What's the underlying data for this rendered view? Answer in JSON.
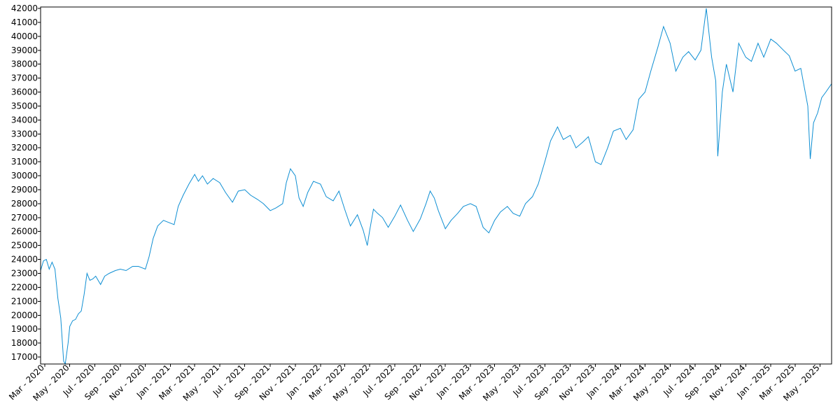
{
  "chart_data": {
    "type": "line",
    "title": "",
    "xlabel": "",
    "ylabel": "",
    "grid": false,
    "line_color": "#0f8fd3",
    "xlim": [
      "2020-02-20",
      "2025-05-29"
    ],
    "ylim": [
      16500,
      42100
    ],
    "y_ticks": [
      17000,
      18000,
      19000,
      20000,
      21000,
      22000,
      23000,
      24000,
      25000,
      26000,
      27000,
      28000,
      29000,
      30000,
      31000,
      32000,
      33000,
      34000,
      35000,
      36000,
      37000,
      38000,
      39000,
      40000,
      41000,
      42000
    ],
    "x_ticks": [
      {
        "date": "2020-03-01",
        "label": "Mar - 2020"
      },
      {
        "date": "2020-05-01",
        "label": "May - 2020"
      },
      {
        "date": "2020-07-01",
        "label": "Jul - 2020"
      },
      {
        "date": "2020-09-01",
        "label": "Sep - 2020"
      },
      {
        "date": "2020-11-01",
        "label": "Nov - 2020"
      },
      {
        "date": "2021-01-01",
        "label": "Jan - 2021"
      },
      {
        "date": "2021-03-01",
        "label": "Mar - 2021"
      },
      {
        "date": "2021-05-01",
        "label": "May - 2021"
      },
      {
        "date": "2021-07-01",
        "label": "Jul - 2021"
      },
      {
        "date": "2021-09-01",
        "label": "Sep - 2021"
      },
      {
        "date": "2021-11-01",
        "label": "Nov - 2021"
      },
      {
        "date": "2022-01-01",
        "label": "Jan - 2022"
      },
      {
        "date": "2022-03-01",
        "label": "Mar - 2022"
      },
      {
        "date": "2022-05-01",
        "label": "May - 2022"
      },
      {
        "date": "2022-07-01",
        "label": "Jul - 2022"
      },
      {
        "date": "2022-09-01",
        "label": "Sep - 2022"
      },
      {
        "date": "2022-11-01",
        "label": "Nov - 2022"
      },
      {
        "date": "2023-01-01",
        "label": "Jan - 2023"
      },
      {
        "date": "2023-03-01",
        "label": "Mar - 2023"
      },
      {
        "date": "2023-05-01",
        "label": "May - 2023"
      },
      {
        "date": "2023-07-01",
        "label": "Jul - 2023"
      },
      {
        "date": "2023-09-01",
        "label": "Sep - 2023"
      },
      {
        "date": "2023-11-01",
        "label": "Nov - 2023"
      },
      {
        "date": "2024-01-01",
        "label": "Jan - 2024"
      },
      {
        "date": "2024-03-01",
        "label": "Mar - 2024"
      },
      {
        "date": "2024-05-01",
        "label": "May - 2024"
      },
      {
        "date": "2024-07-01",
        "label": "Jul - 2024"
      },
      {
        "date": "2024-09-01",
        "label": "Sep - 2024"
      },
      {
        "date": "2024-11-01",
        "label": "Nov - 2024"
      },
      {
        "date": "2025-01-01",
        "label": "Jan - 2025"
      },
      {
        "date": "2025-03-01",
        "label": "Mar - 2025"
      },
      {
        "date": "2025-05-01",
        "label": "May - 2025"
      }
    ],
    "series": [
      {
        "points": [
          [
            "2020-02-20",
            23200
          ],
          [
            "2020-02-27",
            23900
          ],
          [
            "2020-03-05",
            24000
          ],
          [
            "2020-03-12",
            23300
          ],
          [
            "2020-03-19",
            23800
          ],
          [
            "2020-03-26",
            23300
          ],
          [
            "2020-04-02",
            21200
          ],
          [
            "2020-04-09",
            19800
          ],
          [
            "2020-04-16",
            16700
          ],
          [
            "2020-04-20",
            16500
          ],
          [
            "2020-04-27",
            18000
          ],
          [
            "2020-05-01",
            19200
          ],
          [
            "2020-05-08",
            19600
          ],
          [
            "2020-05-15",
            19700
          ],
          [
            "2020-05-22",
            20100
          ],
          [
            "2020-05-29",
            20300
          ],
          [
            "2020-06-05",
            21500
          ],
          [
            "2020-06-12",
            23000
          ],
          [
            "2020-06-19",
            22500
          ],
          [
            "2020-06-26",
            22600
          ],
          [
            "2020-07-03",
            22800
          ],
          [
            "2020-07-15",
            22200
          ],
          [
            "2020-07-25",
            22800
          ],
          [
            "2020-08-05",
            23000
          ],
          [
            "2020-08-20",
            23200
          ],
          [
            "2020-09-01",
            23300
          ],
          [
            "2020-09-15",
            23200
          ],
          [
            "2020-10-01",
            23500
          ],
          [
            "2020-10-15",
            23500
          ],
          [
            "2020-11-01",
            23300
          ],
          [
            "2020-11-10",
            24200
          ],
          [
            "2020-11-20",
            25500
          ],
          [
            "2020-12-01",
            26400
          ],
          [
            "2020-12-15",
            26800
          ],
          [
            "2021-01-01",
            26600
          ],
          [
            "2021-01-10",
            26500
          ],
          [
            "2021-01-20",
            27800
          ],
          [
            "2021-02-01",
            28600
          ],
          [
            "2021-02-15",
            29400
          ],
          [
            "2021-03-01",
            30100
          ],
          [
            "2021-03-10",
            29600
          ],
          [
            "2021-03-20",
            30000
          ],
          [
            "2021-04-01",
            29400
          ],
          [
            "2021-04-15",
            29800
          ],
          [
            "2021-05-01",
            29500
          ],
          [
            "2021-05-15",
            28800
          ],
          [
            "2021-06-01",
            28100
          ],
          [
            "2021-06-15",
            28900
          ],
          [
            "2021-07-01",
            29000
          ],
          [
            "2021-07-15",
            28600
          ],
          [
            "2021-08-01",
            28300
          ],
          [
            "2021-08-15",
            28000
          ],
          [
            "2021-09-01",
            27500
          ],
          [
            "2021-09-15",
            27700
          ],
          [
            "2021-10-01",
            28000
          ],
          [
            "2021-10-10",
            29500
          ],
          [
            "2021-10-20",
            30500
          ],
          [
            "2021-11-01",
            30000
          ],
          [
            "2021-11-10",
            28400
          ],
          [
            "2021-11-20",
            27800
          ],
          [
            "2021-12-01",
            28800
          ],
          [
            "2021-12-15",
            29600
          ],
          [
            "2022-01-01",
            29400
          ],
          [
            "2022-01-15",
            28500
          ],
          [
            "2022-02-01",
            28200
          ],
          [
            "2022-02-15",
            28900
          ],
          [
            "2022-03-01",
            27600
          ],
          [
            "2022-03-15",
            26400
          ],
          [
            "2022-04-01",
            27200
          ],
          [
            "2022-04-15",
            26100
          ],
          [
            "2022-04-25",
            25000
          ],
          [
            "2022-05-01",
            26100
          ],
          [
            "2022-05-10",
            27600
          ],
          [
            "2022-05-20",
            27300
          ],
          [
            "2022-06-01",
            27000
          ],
          [
            "2022-06-15",
            26300
          ],
          [
            "2022-07-01",
            27100
          ],
          [
            "2022-07-15",
            27900
          ],
          [
            "2022-08-01",
            26800
          ],
          [
            "2022-08-15",
            26000
          ],
          [
            "2022-09-01",
            26900
          ],
          [
            "2022-09-15",
            28000
          ],
          [
            "2022-09-25",
            28900
          ],
          [
            "2022-10-05",
            28400
          ],
          [
            "2022-10-15",
            27500
          ],
          [
            "2022-11-01",
            26200
          ],
          [
            "2022-11-15",
            26800
          ],
          [
            "2022-12-01",
            27300
          ],
          [
            "2022-12-15",
            27800
          ],
          [
            "2023-01-01",
            28000
          ],
          [
            "2023-01-15",
            27800
          ],
          [
            "2023-02-01",
            26300
          ],
          [
            "2023-02-15",
            25900
          ],
          [
            "2023-03-01",
            26800
          ],
          [
            "2023-03-15",
            27400
          ],
          [
            "2023-04-01",
            27800
          ],
          [
            "2023-04-15",
            27300
          ],
          [
            "2023-05-01",
            27100
          ],
          [
            "2023-05-15",
            28000
          ],
          [
            "2023-06-01",
            28500
          ],
          [
            "2023-06-15",
            29400
          ],
          [
            "2023-07-01",
            31000
          ],
          [
            "2023-07-15",
            32500
          ],
          [
            "2023-08-01",
            33500
          ],
          [
            "2023-08-15",
            32600
          ],
          [
            "2023-09-01",
            32900
          ],
          [
            "2023-09-15",
            32000
          ],
          [
            "2023-10-01",
            32400
          ],
          [
            "2023-10-15",
            32800
          ],
          [
            "2023-11-01",
            31000
          ],
          [
            "2023-11-15",
            30800
          ],
          [
            "2023-12-01",
            32000
          ],
          [
            "2023-12-15",
            33200
          ],
          [
            "2024-01-01",
            33400
          ],
          [
            "2024-01-15",
            32600
          ],
          [
            "2024-02-01",
            33300
          ],
          [
            "2024-02-15",
            35500
          ],
          [
            "2024-03-01",
            36000
          ],
          [
            "2024-03-15",
            37500
          ],
          [
            "2024-04-01",
            39200
          ],
          [
            "2024-04-15",
            40700
          ],
          [
            "2024-05-01",
            39500
          ],
          [
            "2024-05-15",
            37500
          ],
          [
            "2024-06-01",
            38500
          ],
          [
            "2024-06-15",
            38900
          ],
          [
            "2024-07-01",
            38300
          ],
          [
            "2024-07-15",
            39000
          ],
          [
            "2024-07-28",
            42000
          ],
          [
            "2024-08-10",
            38500
          ],
          [
            "2024-08-20",
            36800
          ],
          [
            "2024-08-25",
            31400
          ],
          [
            "2024-09-05",
            36000
          ],
          [
            "2024-09-15",
            38000
          ],
          [
            "2024-10-01",
            36000
          ],
          [
            "2024-10-15",
            39500
          ],
          [
            "2024-11-01",
            38500
          ],
          [
            "2024-11-15",
            38200
          ],
          [
            "2024-12-01",
            39500
          ],
          [
            "2024-12-15",
            38500
          ],
          [
            "2025-01-01",
            39800
          ],
          [
            "2025-01-15",
            39500
          ],
          [
            "2025-02-01",
            39000
          ],
          [
            "2025-02-15",
            38600
          ],
          [
            "2025-03-01",
            37500
          ],
          [
            "2025-03-15",
            37700
          ],
          [
            "2025-04-01",
            35000
          ],
          [
            "2025-04-07",
            31200
          ],
          [
            "2025-04-15",
            33800
          ],
          [
            "2025-04-25",
            34500
          ],
          [
            "2025-05-05",
            35600
          ],
          [
            "2025-05-15",
            36000
          ],
          [
            "2025-05-29",
            36600
          ]
        ]
      }
    ]
  }
}
